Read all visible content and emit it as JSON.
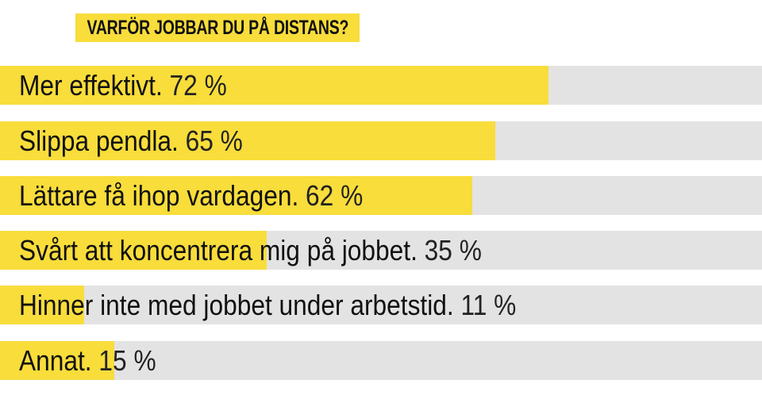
{
  "chart_data": {
    "type": "bar",
    "orientation": "horizontal",
    "title": "VARFÖR JOBBAR DU PÅ DISTANS?",
    "categories": [
      "Mer effektivt.",
      "Slippa pendla.",
      "Lättare få ihop vardagen.",
      "Svårt att koncentrera mig på jobbet.",
      "Hinner inte med jobbet under arbetstid.",
      "Annat."
    ],
    "values": [
      72,
      65,
      62,
      35,
      11,
      15
    ],
    "value_labels": [
      "72 %",
      "65 %",
      "62 %",
      "35 %",
      "11 %",
      "15 %"
    ],
    "xlim": [
      0,
      100
    ],
    "unit": "%",
    "colors": {
      "bar": "#f8dd3b",
      "track": "#e3e3e3"
    },
    "grid": false
  }
}
